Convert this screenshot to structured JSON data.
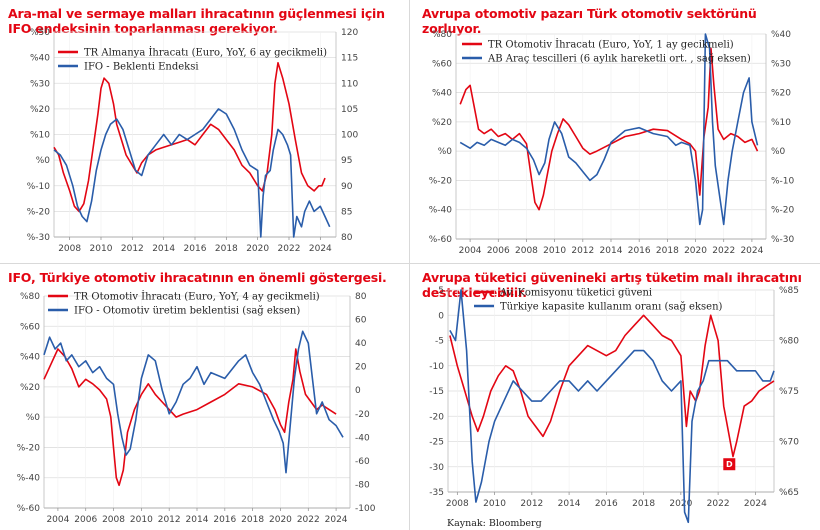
{
  "source": "Kaynak: Bloomberg",
  "colors": {
    "red": "#e30613",
    "blue": "#2a5daa",
    "grid": "#dedede"
  },
  "chart_data": [
    {
      "type": "line",
      "title": "Ara-mal ve sermaye malları ihracatının güçlenmesi için IFO endeksinin toparlanması gerekiyor.",
      "x_ticks": [
        "2008",
        "2010",
        "2012",
        "2014",
        "2016",
        "2018",
        "2020",
        "2022",
        "2024"
      ],
      "xlim": [
        2007,
        2025
      ],
      "y_left": {
        "ticks": [
          "%50",
          "%40",
          "%30",
          "%20",
          "%10",
          "%0",
          "%-10",
          "%-20",
          "%-30"
        ],
        "lim": [
          -30,
          50
        ]
      },
      "y_right": {
        "ticks": [
          "120",
          "115",
          "110",
          "105",
          "100",
          "95",
          "90",
          "85",
          "80"
        ],
        "lim": [
          80,
          120
        ]
      },
      "series": [
        {
          "name": "TR Almanya İhracatı (Euro, YoY, 6 ay gecikmeli)",
          "color": "red",
          "axis": "left",
          "x": [
            2007.0,
            2007.3,
            2007.6,
            2008.0,
            2008.3,
            2008.6,
            2008.9,
            2009.2,
            2009.5,
            2009.8,
            2010.0,
            2010.2,
            2010.5,
            2010.8,
            2011.0,
            2011.3,
            2011.6,
            2012.0,
            2012.3,
            2012.6,
            2013.0,
            2013.5,
            2014.0,
            2014.5,
            2015.0,
            2015.5,
            2016.0,
            2016.5,
            2017.0,
            2017.5,
            2018.0,
            2018.5,
            2019.0,
            2019.5,
            2020.0,
            2020.3,
            2020.6,
            2020.9,
            2021.1,
            2021.3,
            2021.6,
            2022.0,
            2022.4,
            2022.8,
            2023.2,
            2023.6,
            2023.9,
            2024.1,
            2024.3
          ],
          "y": [
            5,
            2,
            -5,
            -12,
            -18,
            -20,
            -17,
            -8,
            5,
            18,
            28,
            32,
            30,
            22,
            14,
            8,
            2,
            -2,
            -5,
            -1,
            2,
            4,
            5,
            6,
            7,
            8,
            6,
            10,
            14,
            12,
            8,
            4,
            -2,
            -5,
            -10,
            -12,
            -5,
            10,
            30,
            38,
            32,
            22,
            8,
            -5,
            -10,
            -12,
            -10,
            -10,
            -7
          ]
        },
        {
          "name": "IFO - Beklenti Endeksi",
          "color": "blue",
          "axis": "right",
          "x": [
            2007.0,
            2007.4,
            2007.8,
            2008.2,
            2008.5,
            2008.8,
            2009.1,
            2009.4,
            2009.7,
            2010.0,
            2010.3,
            2010.6,
            2011.0,
            2011.4,
            2011.8,
            2012.2,
            2012.6,
            2013.0,
            2013.5,
            2014.0,
            2014.5,
            2015.0,
            2015.5,
            2016.0,
            2016.5,
            2017.0,
            2017.5,
            2018.0,
            2018.5,
            2019.0,
            2019.5,
            2020.0,
            2020.2,
            2020.35,
            2020.5,
            2020.8,
            2021.0,
            2021.3,
            2021.6,
            2021.9,
            2022.1,
            2022.3,
            2022.5,
            2022.8,
            2023.0,
            2023.3,
            2023.6,
            2024.0,
            2024.3,
            2024.6
          ],
          "y": [
            97,
            96,
            94,
            90,
            86,
            84,
            83,
            87,
            93,
            97,
            100,
            102,
            103,
            101,
            97,
            93,
            92,
            96,
            98,
            100,
            98,
            100,
            99,
            100,
            101,
            103,
            105,
            104,
            101,
            97,
            94,
            93,
            80,
            88,
            92,
            93,
            97,
            101,
            100,
            98,
            96,
            80,
            84,
            82,
            85,
            87,
            85,
            86,
            84,
            82
          ]
        }
      ]
    },
    {
      "type": "line",
      "title": "Avrupa otomotiv pazarı Türk otomotiv sektörünü zorluyor.",
      "x_ticks": [
        "2004",
        "2006",
        "2008",
        "2010",
        "2012",
        "2014",
        "2016",
        "2018",
        "2020",
        "2022",
        "2024"
      ],
      "xlim": [
        2003,
        2025
      ],
      "y_left": {
        "ticks": [
          "%80",
          "%60",
          "%40",
          "%20",
          "%0",
          "%-20",
          "%-40",
          "%-60"
        ],
        "lim": [
          -60,
          80
        ]
      },
      "y_right": {
        "ticks": [
          "%40",
          "%30",
          "%20",
          "%10",
          "%0",
          "%-10",
          "%-20",
          "%-30"
        ],
        "lim": [
          -30,
          40
        ]
      },
      "series": [
        {
          "name": "TR Otomotiv İhracatı (Euro, YoY, 1 ay gecikmeli)",
          "color": "red",
          "axis": "left",
          "x": [
            2003.3,
            2003.7,
            2004.0,
            2004.3,
            2004.6,
            2005.0,
            2005.5,
            2006.0,
            2006.5,
            2007.0,
            2007.5,
            2008.0,
            2008.3,
            2008.6,
            2008.9,
            2009.2,
            2009.5,
            2009.8,
            2010.2,
            2010.6,
            2011.0,
            2011.5,
            2012.0,
            2012.5,
            2013.0,
            2014.0,
            2015.0,
            2016.0,
            2017.0,
            2018.0,
            2019.0,
            2019.6,
            2020.0,
            2020.3,
            2020.6,
            2020.9,
            2021.1,
            2021.3,
            2021.6,
            2022.0,
            2022.5,
            2023.0,
            2023.5,
            2024.0,
            2024.4
          ],
          "y": [
            32,
            42,
            45,
            30,
            15,
            12,
            15,
            10,
            12,
            8,
            12,
            5,
            -15,
            -35,
            -40,
            -30,
            -15,
            0,
            12,
            22,
            18,
            10,
            2,
            -2,
            0,
            5,
            10,
            12,
            15,
            14,
            8,
            5,
            0,
            -30,
            10,
            30,
            70,
            45,
            15,
            8,
            12,
            10,
            6,
            8,
            0
          ]
        },
        {
          "name": "AB Araç tescilleri (6 aylık hareketli ort. , sağ eksen)",
          "color": "blue",
          "axis": "right",
          "x": [
            2003.3,
            2004.0,
            2004.5,
            2005.0,
            2005.5,
            2006.0,
            2006.5,
            2007.0,
            2007.5,
            2008.0,
            2008.5,
            2008.9,
            2009.3,
            2009.6,
            2010.0,
            2010.5,
            2011.0,
            2011.5,
            2012.0,
            2012.5,
            2013.0,
            2013.5,
            2014.0,
            2014.5,
            2015.0,
            2016.0,
            2017.0,
            2018.0,
            2018.6,
            2019.0,
            2019.6,
            2020.0,
            2020.3,
            2020.5,
            2020.7,
            2021.0,
            2021.2,
            2021.4,
            2021.7,
            2022.0,
            2022.3,
            2022.6,
            2023.0,
            2023.4,
            2023.8,
            2024.0,
            2024.4
          ],
          "y": [
            3,
            1,
            3,
            2,
            4,
            3,
            2,
            4,
            3,
            1,
            -3,
            -8,
            -4,
            4,
            10,
            6,
            -2,
            -4,
            -7,
            -10,
            -8,
            -3,
            3,
            5,
            7,
            8,
            6,
            5,
            2,
            3,
            2,
            -10,
            -25,
            -20,
            40,
            35,
            10,
            -5,
            -15,
            -25,
            -10,
            0,
            10,
            20,
            25,
            10,
            2
          ]
        }
      ]
    },
    {
      "type": "line",
      "title": "IFO, Türkiye otomotiv ihracatının en önemli göstergesi.",
      "x_ticks": [
        "2004",
        "2006",
        "2008",
        "2010",
        "2012",
        "2014",
        "2016",
        "2018",
        "2020",
        "2022",
        "2024"
      ],
      "xlim": [
        2003,
        2025
      ],
      "y_left": {
        "ticks": [
          "%80",
          "%60",
          "%40",
          "%20",
          "%0",
          "%-20",
          "%-40",
          "%-60"
        ],
        "lim": [
          -60,
          80
        ]
      },
      "y_right": {
        "ticks": [
          "80",
          "60",
          "40",
          "20",
          "0",
          "-20",
          "-40",
          "-60",
          "-80",
          "-100"
        ],
        "lim": [
          -100,
          80
        ]
      },
      "series": [
        {
          "name": "TR Otomotiv İhracatı (Euro, YoY, 4 ay gecikmeli)",
          "color": "red",
          "axis": "left",
          "x": [
            2003.0,
            2003.5,
            2004.0,
            2004.5,
            2005.0,
            2005.5,
            2006.0,
            2006.5,
            2007.0,
            2007.5,
            2007.8,
            2008.0,
            2008.2,
            2008.4,
            2008.7,
            2009.0,
            2009.5,
            2010.0,
            2010.5,
            2011.0,
            2011.5,
            2012.0,
            2012.5,
            2013.0,
            2014.0,
            2015.0,
            2016.0,
            2017.0,
            2018.0,
            2019.0,
            2019.6,
            2020.0,
            2020.3,
            2020.6,
            2020.9,
            2021.1,
            2021.4,
            2021.8,
            2022.2,
            2022.6,
            2023.0,
            2023.5,
            2024.0
          ],
          "y": [
            25,
            35,
            45,
            40,
            32,
            20,
            25,
            22,
            18,
            12,
            0,
            -20,
            -40,
            -45,
            -35,
            -10,
            5,
            15,
            22,
            15,
            10,
            5,
            0,
            2,
            5,
            10,
            15,
            22,
            20,
            15,
            5,
            -5,
            -10,
            10,
            25,
            45,
            30,
            15,
            10,
            5,
            8,
            5,
            2
          ]
        },
        {
          "name": "IFO - Otomotiv üretim beklentisi (sağ eksen)",
          "color": "blue",
          "axis": "right",
          "x": [
            2003.0,
            2003.4,
            2003.8,
            2004.2,
            2004.6,
            2005.0,
            2005.5,
            2006.0,
            2006.5,
            2007.0,
            2007.5,
            2008.0,
            2008.3,
            2008.6,
            2008.9,
            2009.2,
            2009.6,
            2010.0,
            2010.5,
            2011.0,
            2011.5,
            2012.0,
            2012.5,
            2013.0,
            2013.5,
            2014.0,
            2014.5,
            2015.0,
            2016.0,
            2017.0,
            2017.5,
            2018.0,
            2018.5,
            2019.0,
            2019.5,
            2019.9,
            2020.2,
            2020.4,
            2020.7,
            2021.0,
            2021.3,
            2021.6,
            2022.0,
            2022.3,
            2022.6,
            2023.0,
            2023.5,
            2024.0,
            2024.5
          ],
          "y": [
            30,
            45,
            35,
            40,
            25,
            30,
            20,
            25,
            15,
            20,
            10,
            5,
            -20,
            -40,
            -55,
            -50,
            -25,
            10,
            30,
            25,
            0,
            -20,
            -10,
            5,
            10,
            20,
            5,
            15,
            10,
            25,
            30,
            15,
            5,
            -10,
            -25,
            -35,
            -45,
            -70,
            -30,
            10,
            35,
            50,
            40,
            10,
            -20,
            -10,
            -25,
            -30,
            -40
          ]
        }
      ]
    },
    {
      "type": "line",
      "title": "Avrupa tüketici güvenineki artış tüketim malı ihracatını destekleyebilir.",
      "x_ticks": [
        "2008",
        "2010",
        "2012",
        "2014",
        "2016",
        "2018",
        "2020",
        "2022",
        "2024"
      ],
      "xlim": [
        2007.5,
        2025
      ],
      "y_left": {
        "ticks": [
          "5",
          "0",
          "-5",
          "-10",
          "-15",
          "-20",
          "-25",
          "-30",
          "-35"
        ],
        "lim": [
          -35,
          5
        ]
      },
      "y_right": {
        "ticks": [
          "%85",
          "%80",
          "%75",
          "%70",
          "%65"
        ],
        "lim": [
          65,
          85
        ]
      },
      "annotation": "D",
      "series": [
        {
          "name": "Av. Komisyonu tüketici güveni",
          "color": "red",
          "axis": "left",
          "x": [
            2007.6,
            2008.0,
            2008.4,
            2008.8,
            2009.1,
            2009.4,
            2009.8,
            2010.2,
            2010.6,
            2011.0,
            2011.4,
            2011.8,
            2012.2,
            2012.6,
            2013.0,
            2013.5,
            2014.0,
            2014.5,
            2015.0,
            2016.0,
            2016.5,
            2017.0,
            2017.5,
            2018.0,
            2018.5,
            2019.0,
            2019.5,
            2020.0,
            2020.3,
            2020.5,
            2020.8,
            2021.0,
            2021.3,
            2021.6,
            2022.0,
            2022.3,
            2022.6,
            2022.8,
            2023.0,
            2023.4,
            2023.8,
            2024.2,
            2024.6,
            2025.0
          ],
          "y": [
            -4,
            -10,
            -15,
            -20,
            -23,
            -20,
            -15,
            -12,
            -10,
            -11,
            -15,
            -20,
            -22,
            -24,
            -21,
            -15,
            -10,
            -8,
            -6,
            -8,
            -7,
            -4,
            -2,
            0,
            -2,
            -4,
            -5,
            -8,
            -22,
            -15,
            -17,
            -15,
            -6,
            0,
            -5,
            -18,
            -24,
            -28,
            -25,
            -18,
            -17,
            -15,
            -14,
            -13
          ]
        },
        {
          "name": "Türkiye kapasite kullanım oranı (sağ eksen)",
          "color": "blue",
          "axis": "right",
          "x": [
            2007.6,
            2007.9,
            2008.2,
            2008.5,
            2008.8,
            2009.0,
            2009.3,
            2009.7,
            2010.0,
            2010.5,
            2011.0,
            2011.5,
            2012.0,
            2012.5,
            2013.0,
            2013.5,
            2014.0,
            2014.5,
            2015.0,
            2015.5,
            2016.0,
            2016.5,
            2017.0,
            2017.5,
            2018.0,
            2018.5,
            2019.0,
            2019.5,
            2020.0,
            2020.2,
            2020.4,
            2020.6,
            2020.9,
            2021.2,
            2021.5,
            2022.0,
            2022.5,
            2023.0,
            2023.5,
            2024.0,
            2024.4,
            2024.8,
            2025.0
          ],
          "y": [
            81,
            80,
            85,
            79,
            68,
            64,
            66,
            70,
            72,
            74,
            76,
            75,
            74,
            74,
            75,
            76,
            76,
            75,
            76,
            75,
            76,
            77,
            78,
            79,
            79,
            78,
            76,
            75,
            76,
            63,
            62,
            72,
            75,
            76,
            78,
            78,
            78,
            77,
            77,
            77,
            76,
            76,
            77
          ]
        }
      ]
    }
  ]
}
